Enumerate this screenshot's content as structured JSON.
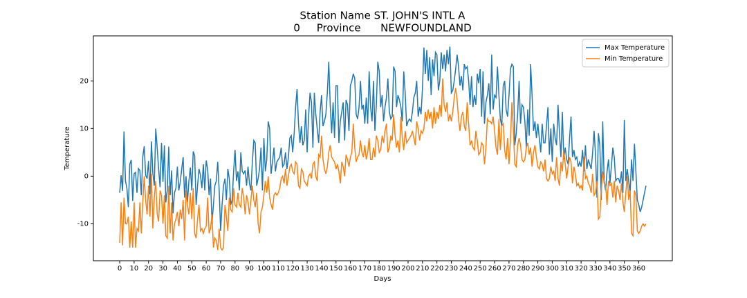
{
  "chart_data": {
    "type": "line",
    "title": [
      "Station Name ST. JOHN'S INTL A",
      "0     Province      NEWFOUNDLAND"
    ],
    "title_color": "#ff0000",
    "xlabel": "Days",
    "ylabel": "Temperature",
    "label_color": "#008000",
    "legend": "upper right",
    "grid": false,
    "xlim": [
      -18.25,
      383.25
    ],
    "ylim": [
      -17.75,
      29.45
    ],
    "xticks": [
      0,
      10,
      20,
      30,
      40,
      50,
      60,
      70,
      80,
      90,
      100,
      110,
      120,
      130,
      140,
      150,
      160,
      170,
      180,
      190,
      200,
      210,
      220,
      230,
      240,
      250,
      260,
      270,
      280,
      290,
      300,
      310,
      320,
      330,
      340,
      350,
      360
    ],
    "yticks": [
      -10,
      0,
      10,
      20
    ],
    "x": [
      0,
      1,
      2,
      3,
      4,
      5,
      6,
      7,
      8,
      9,
      10,
      11,
      12,
      13,
      14,
      15,
      16,
      17,
      18,
      19,
      20,
      21,
      22,
      23,
      24,
      25,
      26,
      27,
      28,
      29,
      30,
      31,
      32,
      33,
      34,
      35,
      36,
      37,
      38,
      39,
      40,
      41,
      42,
      43,
      44,
      45,
      46,
      47,
      48,
      49,
      50,
      51,
      52,
      53,
      54,
      55,
      56,
      57,
      58,
      59,
      60,
      61,
      62,
      63,
      64,
      65,
      66,
      67,
      68,
      69,
      70,
      71,
      72,
      73,
      74,
      75,
      76,
      77,
      78,
      79,
      80,
      81,
      82,
      83,
      84,
      85,
      86,
      87,
      88,
      89,
      90,
      91,
      92,
      93,
      94,
      95,
      96,
      97,
      98,
      99,
      100,
      101,
      102,
      103,
      104,
      105,
      106,
      107,
      108,
      109,
      110,
      111,
      112,
      113,
      114,
      115,
      116,
      117,
      118,
      119,
      120,
      121,
      122,
      123,
      124,
      125,
      126,
      127,
      128,
      129,
      130,
      131,
      132,
      133,
      134,
      135,
      136,
      137,
      138,
      139,
      140,
      141,
      142,
      143,
      144,
      145,
      146,
      147,
      148,
      149,
      150,
      151,
      152,
      153,
      154,
      155,
      156,
      157,
      158,
      159,
      160,
      161,
      162,
      163,
      164,
      165,
      166,
      167,
      168,
      169,
      170,
      171,
      172,
      173,
      174,
      175,
      176,
      177,
      178,
      179,
      180,
      181,
      182,
      183,
      184,
      185,
      186,
      187,
      188,
      189,
      190,
      191,
      192,
      193,
      194,
      195,
      196,
      197,
      198,
      199,
      200,
      201,
      202,
      203,
      204,
      205,
      206,
      207,
      208,
      209,
      210,
      211,
      212,
      213,
      214,
      215,
      216,
      217,
      218,
      219,
      220,
      221,
      222,
      223,
      224,
      225,
      226,
      227,
      228,
      229,
      230,
      231,
      232,
      233,
      234,
      235,
      236,
      237,
      238,
      239,
      240,
      241,
      242,
      243,
      244,
      245,
      246,
      247,
      248,
      249,
      250,
      251,
      252,
      253,
      254,
      255,
      256,
      257,
      258,
      259,
      260,
      261,
      262,
      263,
      264,
      265,
      266,
      267,
      268,
      269,
      270,
      271,
      272,
      273,
      274,
      275,
      276,
      277,
      278,
      279,
      280,
      281,
      282,
      283,
      284,
      285,
      286,
      287,
      288,
      289,
      290,
      291,
      292,
      293,
      294,
      295,
      296,
      297,
      298,
      299,
      300,
      301,
      302,
      303,
      304,
      305,
      306,
      307,
      308,
      309,
      310,
      311,
      312,
      313,
      314,
      315,
      316,
      317,
      318,
      319,
      320,
      321,
      322,
      323,
      324,
      325,
      326,
      327,
      328,
      329,
      330,
      331,
      332,
      333,
      334,
      335,
      336,
      337,
      338,
      339,
      340,
      341,
      342,
      343,
      344,
      345,
      346,
      347,
      348,
      349,
      350,
      351,
      352,
      353,
      354,
      355,
      356,
      357,
      358,
      359,
      360,
      361,
      362,
      363,
      364,
      365
    ],
    "series": [
      {
        "name": "Max Temperature",
        "color": "#1f77b4",
        "values": [
          -3.5,
          0.2,
          -3.1,
          9.4,
          -1.0,
          -2.5,
          -6.5,
          2.5,
          3.4,
          -5.2,
          0.5,
          0.8,
          -3.5,
          1.6,
          1.2,
          -4.0,
          4.0,
          6.3,
          0.2,
          -0.5,
          3.2,
          -3.8,
          7.3,
          0.6,
          -2.0,
          10.0,
          6.0,
          1.5,
          -2.3,
          7.0,
          -1.2,
          6.5,
          -5.5,
          -3.0,
          6.2,
          -4.0,
          1.2,
          -7.8,
          -3.5,
          -2.5,
          2.0,
          -3.0,
          -1.2,
          1.5,
          4.0,
          -4.5,
          0.0,
          -5.5,
          -1.0,
          1.8,
          -3.0,
          5.2,
          4.3,
          -6.0,
          -2.0,
          1.5,
          0.2,
          -2.5,
          2.5,
          -3.0,
          3.3,
          1.5,
          -4.0,
          -0.5,
          -10.0,
          -6.0,
          -2.0,
          -1.0,
          3.0,
          -3.0,
          -11.5,
          -6.0,
          -2.0,
          -0.5,
          -5.0,
          1.5,
          -0.5,
          -6.0,
          -5.0,
          1.0,
          5.5,
          -1.0,
          1.0,
          -3.0,
          5.0,
          1.0,
          0.5,
          1.2,
          -2.0,
          2.0,
          -1.5,
          -3.0,
          3.0,
          7.5,
          7.0,
          -2.0,
          -0.5,
          1.5,
          6.0,
          -3.0,
          8.0,
          1.0,
          3.5,
          11.5,
          10.0,
          0.5,
          3.0,
          6.0,
          1.0,
          3.0,
          3.5,
          4.0,
          6.0,
          2.0,
          2.5,
          5.0,
          1.5,
          4.0,
          8.0,
          8.5,
          5.0,
          9.0,
          14.5,
          18.3,
          11.0,
          7.0,
          10.5,
          6.5,
          7.5,
          14.0,
          5.0,
          12.5,
          17.5,
          15.5,
          6.0,
          17.5,
          13.0,
          10.0,
          7.0,
          13.5,
          17.0,
          10.5,
          11.5,
          13.0,
          17.5,
          24.0,
          15.0,
          9.0,
          15.5,
          8.0,
          19.0,
          19.0,
          7.0,
          11.5,
          13.5,
          15.5,
          7.5,
          16.0,
          15.0,
          9.5,
          19.0,
          20.0,
          21.5,
          20.5,
          13.0,
          12.0,
          14.5,
          20.0,
          14.0,
          15.0,
          11.0,
          16.5,
          11.0,
          22.0,
          14.5,
          11.5,
          20.0,
          9.5,
          15.0,
          24.0,
          22.0,
          14.5,
          17.0,
          11.5,
          14.5,
          16.5,
          20.5,
          13.5,
          12.0,
          12.5,
          23.0,
          22.0,
          14.5,
          17.0,
          16.0,
          14.5,
          11.5,
          22.0,
          17.5,
          10.5,
          11.5,
          12.0,
          11.5,
          13.5,
          16.5,
          17.5,
          20.0,
          12.5,
          14.5,
          13.0,
          18.5,
          27.0,
          21.5,
          26.5,
          20.0,
          25.0,
          17.0,
          24.5,
          21.0,
          26.0,
          25.5,
          18.0,
          20.0,
          26.0,
          22.5,
          25.5,
          22.0,
          26.5,
          23.5,
          27.2,
          17.5,
          18.0,
          20.0,
          22.5,
          25.5,
          23.0,
          19.0,
          21.0,
          18.0,
          23.5,
          22.5,
          23.0,
          20.0,
          15.0,
          21.0,
          14.5,
          17.0,
          15.0,
          21.5,
          19.5,
          22.5,
          12.5,
          22.0,
          11.0,
          15.5,
          17.0,
          19.5,
          13.0,
          25.5,
          14.0,
          17.0,
          16.5,
          23.0,
          17.0,
          12.0,
          10.5,
          19.0,
          20.0,
          14.0,
          12.5,
          17.0,
          22.5,
          23.5,
          23.0,
          6.5,
          9.0,
          13.0,
          20.0,
          11.0,
          15.0,
          14.5,
          11.5,
          6.0,
          14.0,
          8.5,
          23.5,
          17.0,
          9.5,
          11.5,
          8.0,
          11.0,
          8.0,
          5.0,
          11.0,
          7.0,
          7.0,
          10.5,
          14.5,
          4.5,
          10.0,
          3.0,
          11.0,
          8.0,
          6.5,
          15.0,
          9.0,
          4.0,
          13.5,
          3.5,
          6.0,
          3.5,
          2.5,
          8.0,
          12.5,
          4.0,
          5.5,
          3.5,
          4.0,
          2.0,
          3.0,
          2.0,
          5.5,
          1.0,
          6.5,
          1.5,
          3.5,
          2.5,
          1.5,
          5.0,
          9.5,
          4.5,
          -4.5,
          9.0,
          6.5,
          -5.0,
          11.5,
          -1.0,
          -3.0,
          1.0,
          3.5,
          -1.5,
          2.0,
          6.0,
          4.0,
          -1.0,
          -0.5,
          -0.5,
          -1.5,
          1.0,
          -3.5,
          11.8,
          -1.0,
          1.5,
          -1.0,
          -3.5,
          3.5,
          -1.0,
          6.8,
          1.0,
          -5.0,
          -6.0,
          -7.5,
          -6.5,
          -5.0,
          -3.5,
          -2.0
        ]
      },
      {
        "name": "Min Temperature",
        "color": "#ff7f0e",
        "values": [
          -14.0,
          -5.5,
          -14.5,
          -4.5,
          -10.0,
          -10.0,
          -8.5,
          -15.0,
          -9.5,
          -15.0,
          -5.5,
          -15.0,
          -11.0,
          -11.5,
          -5.5,
          -12.0,
          -5.5,
          0.0,
          -5.0,
          -8.0,
          -2.0,
          -8.5,
          0.5,
          -11.0,
          -4.5,
          -1.0,
          -8.0,
          -9.5,
          -3.0,
          -4.0,
          -10.0,
          -4.0,
          -12.5,
          -13.0,
          -2.0,
          -12.0,
          -5.5,
          -13.5,
          -10.0,
          -9.0,
          -7.5,
          -10.5,
          -7.0,
          -9.0,
          -5.0,
          -13.5,
          -3.0,
          -6.0,
          -8.0,
          -3.5,
          -9.0,
          -2.5,
          -12.0,
          -13.0,
          -9.0,
          -6.0,
          -11.5,
          -11.0,
          -12.0,
          -11.0,
          -10.5,
          -4.5,
          -12.0,
          -11.0,
          -8.0,
          -15.0,
          -13.0,
          -13.5,
          -15.5,
          -11.0,
          -15.0,
          -15.5,
          -15.0,
          -6.0,
          -8.5,
          -11.5,
          -4.5,
          -7.0,
          -7.5,
          -2.5,
          -6.0,
          -6.5,
          -3.5,
          -6.0,
          -6.5,
          -2.5,
          -4.5,
          -8.0,
          -4.0,
          -5.5,
          -8.0,
          -5.0,
          -2.0,
          -5.0,
          -6.5,
          -3.5,
          -10.0,
          -12.0,
          -7.5,
          -6.5,
          -4.0,
          -1.0,
          -3.5,
          0.0,
          -4.5,
          -6.0,
          -7.0,
          -4.0,
          -3.5,
          -4.0,
          -3.5,
          -2.5,
          -0.5,
          0.0,
          -1.5,
          1.5,
          -2.0,
          0.0,
          2.0,
          2.5,
          1.0,
          0.5,
          3.0,
          2.5,
          -2.0,
          -2.5,
          1.5,
          1.0,
          -1.0,
          -1.5,
          -2.0,
          0.0,
          0.5,
          -0.5,
          2.5,
          3.0,
          0.0,
          -1.0,
          4.5,
          4.0,
          8.5,
          3.5,
          1.5,
          0.5,
          2.0,
          5.0,
          6.5,
          4.0,
          3.5,
          3.0,
          1.5,
          2.5,
          1.0,
          -1.5,
          3.0,
          2.0,
          0.0,
          4.5,
          3.5,
          2.0,
          4.0,
          5.0,
          11.0,
          6.0,
          3.0,
          4.0,
          4.5,
          7.5,
          5.0,
          4.0,
          6.5,
          3.5,
          5.0,
          8.0,
          3.5,
          3.5,
          6.0,
          4.0,
          8.5,
          7.5,
          5.0,
          5.5,
          8.5,
          7.0,
          9.5,
          11.0,
          5.0,
          6.0,
          8.5,
          7.5,
          13.0,
          8.5,
          6.0,
          7.5,
          5.0,
          12.5,
          8.0,
          5.5,
          9.5,
          7.0,
          7.5,
          8.0,
          8.5,
          9.5,
          8.0,
          6.5,
          11.5,
          10.0,
          7.5,
          9.5,
          9.0,
          10.0,
          13.5,
          11.5,
          14.0,
          12.0,
          13.5,
          10.0,
          14.5,
          11.0,
          13.5,
          12.0,
          15.0,
          12.5,
          20.5,
          15.0,
          13.5,
          15.5,
          11.5,
          13.0,
          11.5,
          13.5,
          16.5,
          18.5,
          16.0,
          12.0,
          9.5,
          12.5,
          13.5,
          10.5,
          9.5,
          15.5,
          11.0,
          6.5,
          7.5,
          6.0,
          5.5,
          9.5,
          7.5,
          4.5,
          5.0,
          7.0,
          6.5,
          2.5,
          6.0,
          12.0,
          11.5,
          11.5,
          11.0,
          12.5,
          9.5,
          6.0,
          4.5,
          12.0,
          5.5,
          10.5,
          11.0,
          5.5,
          3.5,
          8.0,
          2.5,
          7.5,
          15.5,
          10.0,
          2.5,
          2.0,
          6.5,
          8.0,
          6.5,
          3.5,
          3.0,
          3.5,
          6.0,
          7.0,
          4.5,
          6.0,
          2.0,
          5.0,
          6.5,
          4.0,
          2.0,
          1.5,
          3.0,
          2.5,
          1.0,
          3.5,
          -0.5,
          -1.0,
          -0.5,
          2.0,
          0.5,
          1.0,
          -1.0,
          4.0,
          -0.5,
          -2.0,
          3.0,
          1.0,
          5.5,
          2.5,
          -0.5,
          2.0,
          4.0,
          3.0,
          -1.5,
          2.0,
          0.5,
          -2.0,
          -1.5,
          -2.5,
          -2.0,
          -3.0,
          4.0,
          -0.5,
          0.0,
          -1.5,
          -2.0,
          -3.5,
          0.5,
          -4.0,
          -3.5,
          -1.0,
          -9.0,
          -8.5,
          -3.0,
          1.0,
          -1.5,
          -2.0,
          -6.0,
          -1.0,
          -2.0,
          -1.5,
          -4.5,
          -1.0,
          -5.5,
          -2.0,
          -3.0,
          -5.0,
          -1.5,
          -5.5,
          -7.5,
          -3.5,
          0.0,
          -5.0,
          -3.0,
          -12.0,
          -12.5,
          -3.0,
          -4.0,
          -11.5,
          -12.0,
          -11.5,
          -10.5,
          -10.0,
          -10.5,
          -10.0
        ]
      }
    ]
  }
}
